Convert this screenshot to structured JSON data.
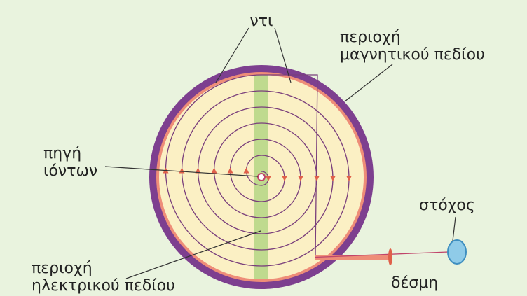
{
  "labels": {
    "dees": "ντι",
    "magnetic_region": [
      "περιοχή",
      "μαγνητικού πεδίου"
    ],
    "ion_source": [
      "πηγή",
      "ιόντων"
    ],
    "electric_region": [
      "περιοχή",
      "ηλεκτρικού πεδίου"
    ],
    "target": "στόχος",
    "beam": "δέσμη"
  }
}
